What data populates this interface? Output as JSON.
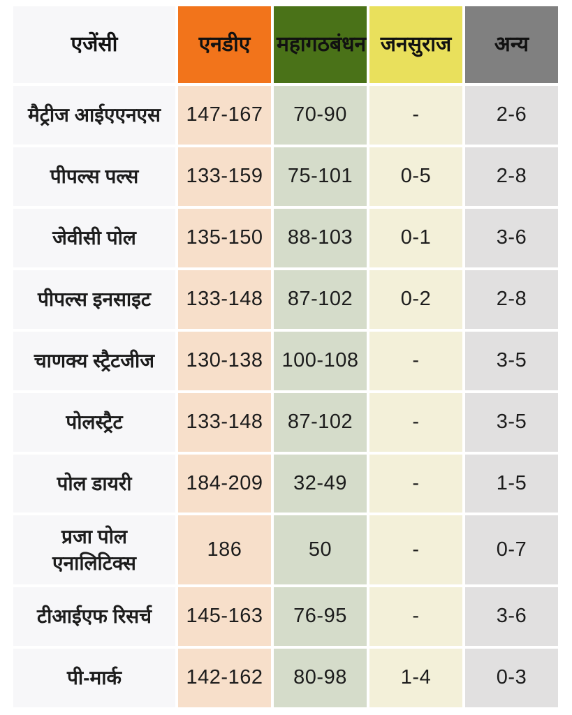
{
  "colors": {
    "c-header-agency": "#f7f7f9",
    "c-header-nda": "#f2741b",
    "c-header-mgb": "#4a7218",
    "c-header-jansuraj": "#e9e05c",
    "c-header-others": "#808080",
    "c-cell-nda": "#f7dfca",
    "c-cell-mgb": "#d5dcca",
    "c-cell-jansuraj": "#f3f0d9",
    "c-cell-others": "#e1e0e0",
    "c-text": "#1c1c1c"
  },
  "table": {
    "header": {
      "agency": "एजेंसी",
      "columns": [
        {
          "key": "nda",
          "label": "एनडीए"
        },
        {
          "key": "mgb",
          "label": "महागठबंधन"
        },
        {
          "key": "jansuraj",
          "label": "जनसुराज"
        },
        {
          "key": "others",
          "label": "अन्य"
        }
      ]
    },
    "rows": [
      {
        "agency": "मैट्रीज आईएएनएस",
        "nda": "147-167",
        "mgb": "70-90",
        "jansuraj": "-",
        "others": "2-6"
      },
      {
        "agency": "पीपल्स पल्स",
        "nda": "133-159",
        "mgb": "75-101",
        "jansuraj": "0-5",
        "others": "2-8"
      },
      {
        "agency": "जेवीसी पोल",
        "nda": "135-150",
        "mgb": "88-103",
        "jansuraj": "0-1",
        "others": "3-6"
      },
      {
        "agency": "पीपल्स इनसाइट",
        "nda": "133-148",
        "mgb": "87-102",
        "jansuraj": "0-2",
        "others": "2-8"
      },
      {
        "agency": "चाणक्य स्ट्रैटजीज",
        "nda": "130-138",
        "mgb": "100-108",
        "jansuraj": "-",
        "others": "3-5"
      },
      {
        "agency": "पोलस्ट्रैट",
        "nda": "133-148",
        "mgb": "87-102",
        "jansuraj": "-",
        "others": "3-5"
      },
      {
        "agency": "पोल डायरी",
        "nda": "184-209",
        "mgb": "32-49",
        "jansuraj": "-",
        "others": "1-5"
      },
      {
        "agency": "प्रजा पोल एनालिटिक्स",
        "nda": "186",
        "mgb": "50",
        "jansuraj": "-",
        "others": "0-7"
      },
      {
        "agency": "टीआईएफ रिसर्च",
        "nda": "145-163",
        "mgb": "76-95",
        "jansuraj": "-",
        "others": "3-6"
      },
      {
        "agency": "पी-मार्क",
        "nda": "142-162",
        "mgb": "80-98",
        "jansuraj": "1-4",
        "others": "0-3"
      }
    ]
  },
  "chart_data": {
    "type": "table",
    "title": "",
    "columns": [
      "एजेंसी",
      "एनडीए",
      "महागठबंधन",
      "जनसुराज",
      "अन्य"
    ],
    "rows": [
      [
        "मैट्रीज आईएएनएस",
        "147-167",
        "70-90",
        "-",
        "2-6"
      ],
      [
        "पीपल्स पल्स",
        "133-159",
        "75-101",
        "0-5",
        "2-8"
      ],
      [
        "जेवीसी पोल",
        "135-150",
        "88-103",
        "0-1",
        "3-6"
      ],
      [
        "पीपल्स इनसाइट",
        "133-148",
        "87-102",
        "0-2",
        "2-8"
      ],
      [
        "चाणक्य स्ट्रैटजीज",
        "130-138",
        "100-108",
        "-",
        "3-5"
      ],
      [
        "पोलस्ट्रैट",
        "133-148",
        "87-102",
        "-",
        "3-5"
      ],
      [
        "पोल डायरी",
        "184-209",
        "32-49",
        "-",
        "1-5"
      ],
      [
        "प्रजा पोल एनालिटिक्स",
        "186",
        "50",
        "-",
        "0-7"
      ],
      [
        "टीआईएफ रिसर्च",
        "145-163",
        "76-95",
        "-",
        "3-6"
      ],
      [
        "पी-मार्क",
        "142-162",
        "80-98",
        "1-4",
        "0-3"
      ]
    ]
  }
}
